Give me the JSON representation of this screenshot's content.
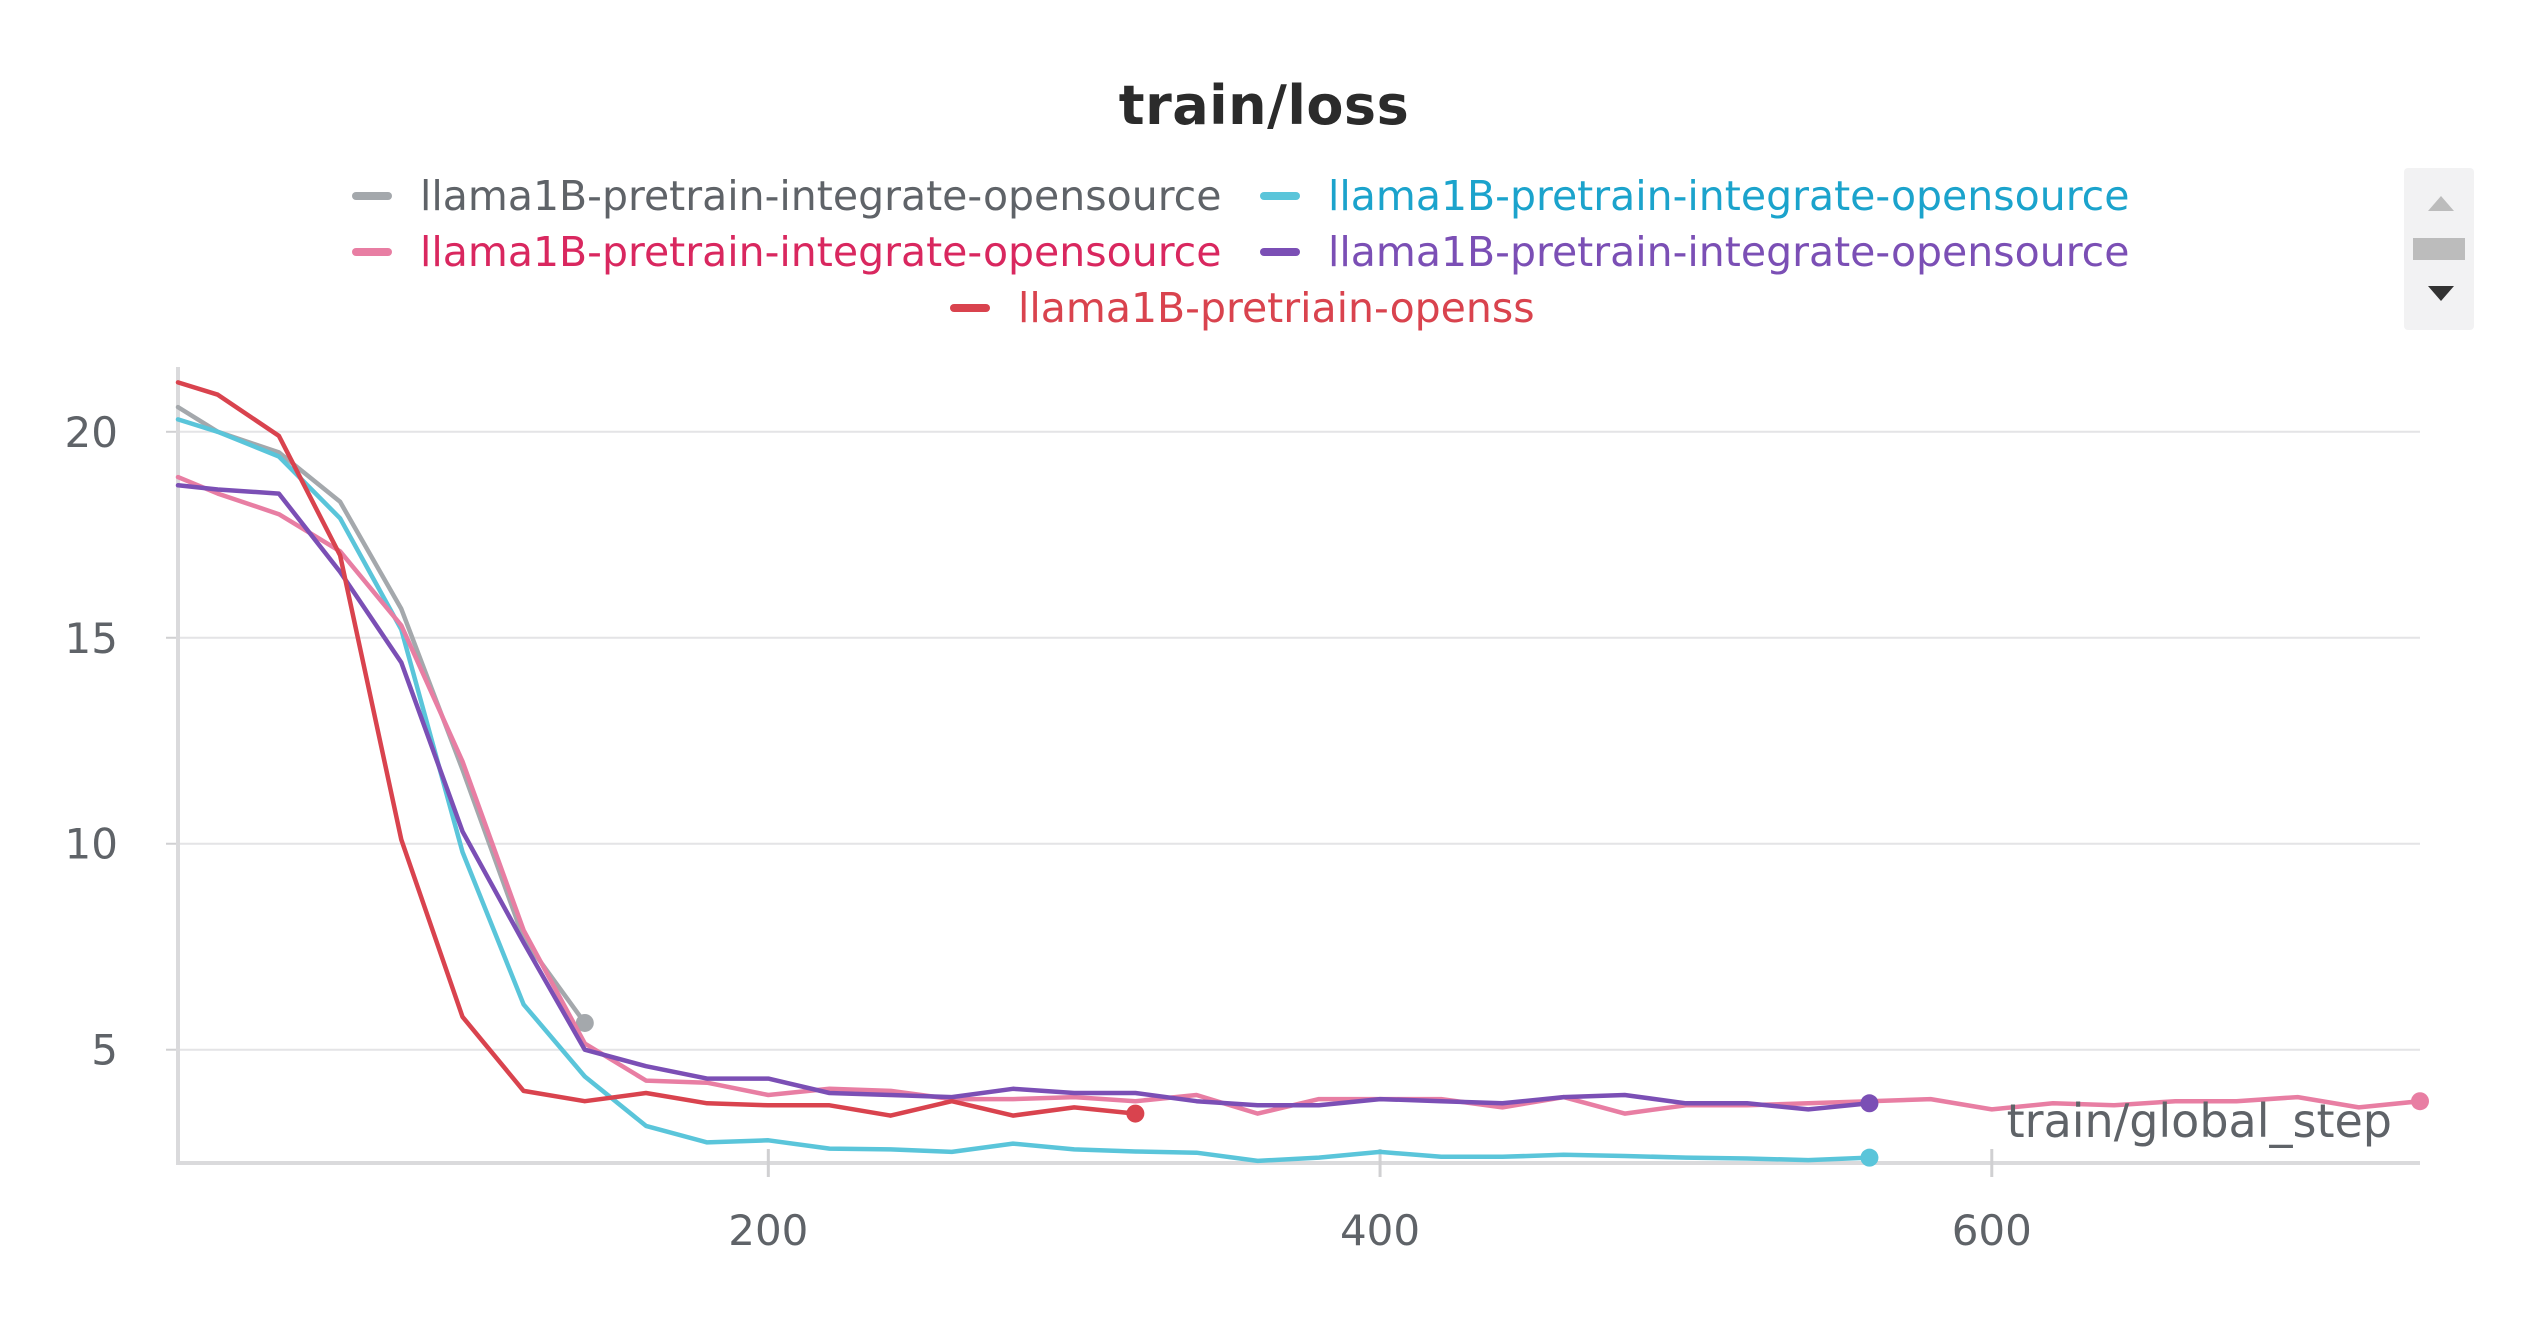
{
  "chart_data": {
    "type": "line",
    "title": "train/loss",
    "xlabel": "train/global_step",
    "ylabel": "",
    "xlim": [
      7,
      740
    ],
    "ylim": [
      2.25,
      21.5
    ],
    "xticks": [
      200,
      400,
      600
    ],
    "yticks": [
      5,
      10,
      15,
      20
    ],
    "grid": true,
    "legend_position": "top",
    "series": [
      {
        "name": "llama1B-pretrain-integrate-opensource",
        "color": "#a4a8ac",
        "label_color": "#5f6368",
        "x": [
          7,
          20,
          40,
          60,
          80,
          100,
          120,
          140
        ],
        "y": [
          20.6,
          20.0,
          19.5,
          18.3,
          15.7,
          11.8,
          7.7,
          5.65
        ]
      },
      {
        "name": "llama1B-pretrain-integrate-opensource",
        "color": "#5ac5da",
        "label_color": "#1ba3cc",
        "x": [
          7,
          20,
          40,
          60,
          80,
          100,
          120,
          140,
          160,
          180,
          200,
          220,
          240,
          260,
          280,
          300,
          320,
          340,
          360,
          380,
          400,
          420,
          440,
          460,
          480,
          500,
          520,
          540,
          560
        ],
        "y": [
          20.3,
          20.0,
          19.4,
          17.9,
          15.2,
          9.8,
          6.1,
          4.35,
          3.15,
          2.75,
          2.8,
          2.6,
          2.58,
          2.52,
          2.72,
          2.58,
          2.53,
          2.5,
          2.3,
          2.38,
          2.52,
          2.4,
          2.4,
          2.45,
          2.42,
          2.38,
          2.36,
          2.32,
          2.38
        ]
      },
      {
        "name": "llama1B-pretrain-integrate-opensource",
        "color": "#e87ea3",
        "label_color": "#d9275f",
        "x": [
          7,
          20,
          40,
          60,
          80,
          100,
          120,
          140,
          160,
          180,
          200,
          220,
          240,
          260,
          280,
          300,
          320,
          340,
          360,
          380,
          400,
          420,
          440,
          460,
          480,
          500,
          520,
          540,
          560,
          580,
          600,
          620,
          640,
          660,
          680,
          700,
          720,
          740
        ],
        "y": [
          18.9,
          18.5,
          18.0,
          17.1,
          15.3,
          12.0,
          7.9,
          5.15,
          4.25,
          4.2,
          3.9,
          4.05,
          4.0,
          3.8,
          3.8,
          3.85,
          3.75,
          3.9,
          3.45,
          3.8,
          3.8,
          3.8,
          3.6,
          3.85,
          3.45,
          3.65,
          3.65,
          3.7,
          3.75,
          3.8,
          3.55,
          3.7,
          3.65,
          3.75,
          3.75,
          3.85,
          3.6,
          3.75
        ]
      },
      {
        "name": "llama1B-pretrain-integrate-opensource",
        "color": "#7b4fb5",
        "label_color": "#7b4fb5",
        "x": [
          7,
          20,
          40,
          60,
          80,
          100,
          120,
          140,
          160,
          180,
          200,
          220,
          240,
          260,
          280,
          300,
          320,
          340,
          360,
          380,
          400,
          420,
          440,
          460,
          480,
          500,
          520,
          540,
          560
        ],
        "y": [
          18.7,
          18.6,
          18.5,
          16.6,
          14.4,
          10.3,
          7.6,
          5.0,
          4.6,
          4.3,
          4.3,
          3.95,
          3.9,
          3.85,
          4.05,
          3.95,
          3.95,
          3.75,
          3.65,
          3.65,
          3.8,
          3.75,
          3.7,
          3.85,
          3.9,
          3.7,
          3.7,
          3.55,
          3.7
        ]
      },
      {
        "name": "llama1B-pretriain-openss",
        "color": "#d9434e",
        "label_color": "#d9434e",
        "x": [
          7,
          20,
          40,
          60,
          80,
          100,
          120,
          140,
          160,
          180,
          200,
          220,
          240,
          260,
          280,
          300,
          320
        ],
        "y": [
          21.2,
          20.9,
          19.9,
          17.0,
          10.1,
          5.8,
          4.0,
          3.75,
          3.95,
          3.7,
          3.65,
          3.65,
          3.4,
          3.75,
          3.4,
          3.6,
          3.45
        ]
      }
    ]
  }
}
